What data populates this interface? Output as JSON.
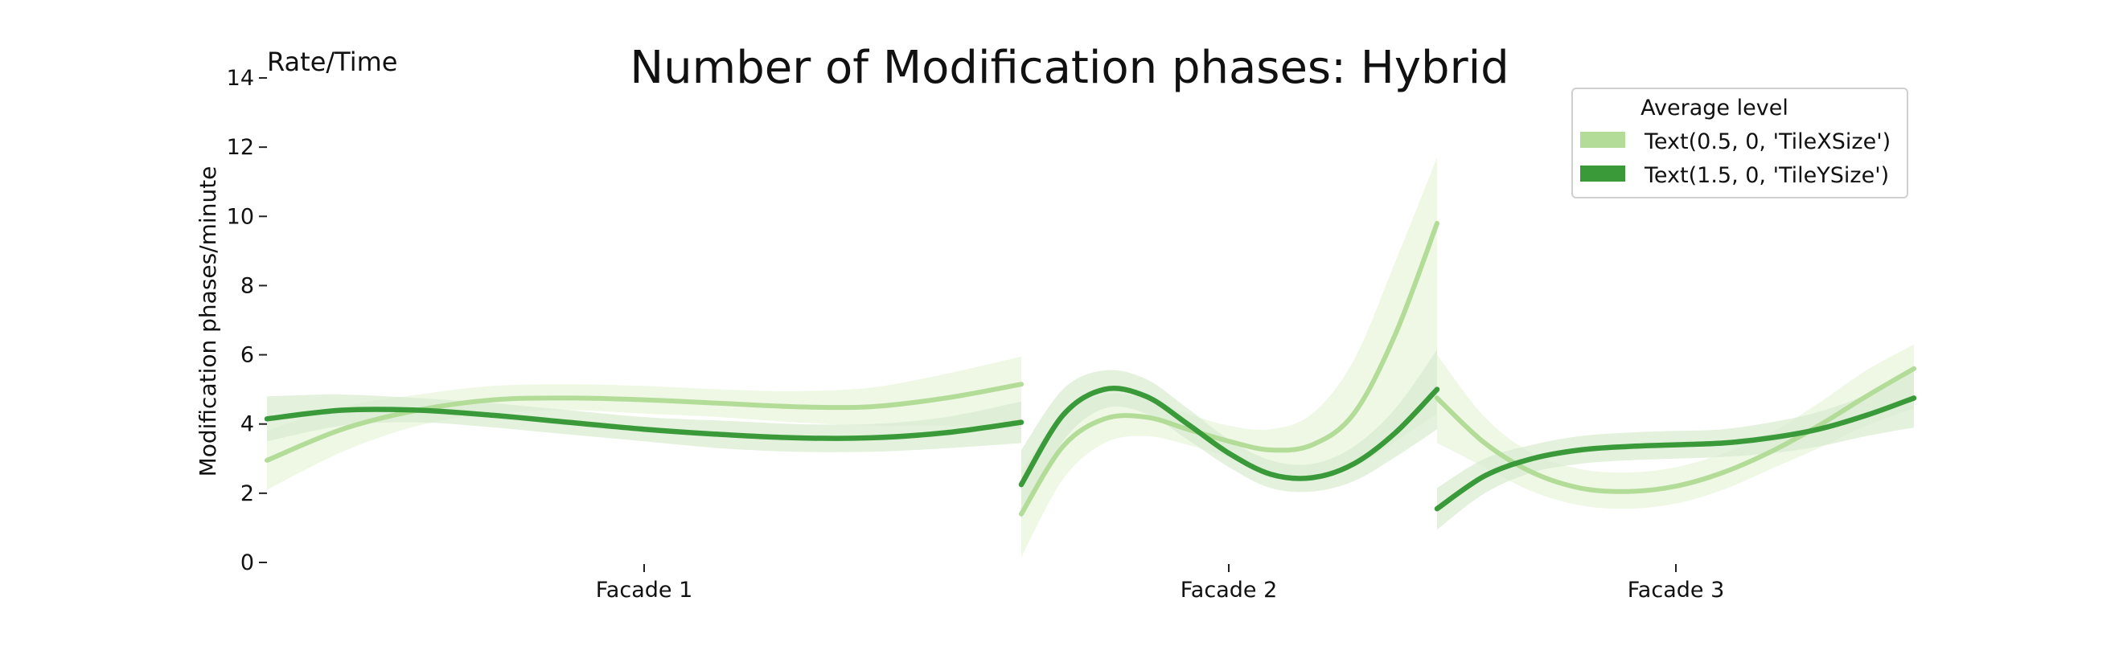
{
  "chart_data": {
    "type": "line",
    "title": "Number of Modification phases: Hybrid",
    "corner_label": "Rate/Time",
    "ylabel": "Modification phases/minute",
    "xlabel": "",
    "ylim": [
      0,
      14
    ],
    "yticks": [
      0,
      2,
      4,
      6,
      8,
      10,
      12,
      14
    ],
    "grid": false,
    "facets": [
      "Facade 1",
      "Facade 2",
      "Facade 3"
    ],
    "legend": {
      "title": "Average level",
      "placement": "top-right",
      "entries": [
        "Text(0.5, 0, 'TileXSize')",
        "Text(1.5, 0, 'TileYSize')"
      ]
    },
    "series": [
      {
        "name": "Text(0.5, 0, 'TileXSize')",
        "color": "#b2dc98",
        "band_color": "#e8f5dc",
        "segments": [
          {
            "facet": "Facade 1",
            "x": [
              0,
              0.1,
              0.2,
              0.3,
              0.4,
              0.5,
              0.6,
              0.7,
              0.8,
              0.9,
              1
            ],
            "y": [
              2.95,
              3.85,
              4.4,
              4.7,
              4.75,
              4.7,
              4.6,
              4.5,
              4.5,
              4.75,
              5.15
            ],
            "lower": [
              2.1,
              3.2,
              3.95,
              4.3,
              4.4,
              4.3,
              4.2,
              4.05,
              3.95,
              3.95,
              3.85
            ],
            "upper": [
              3.8,
              4.5,
              4.85,
              5.1,
              5.15,
              5.1,
              5.0,
              4.95,
              5.05,
              5.45,
              5.95
            ]
          },
          {
            "facet": "Facade 2",
            "x": [
              0,
              0.1,
              0.2,
              0.3,
              0.4,
              0.5,
              0.6,
              0.7,
              0.8,
              0.9,
              1
            ],
            "y": [
              1.4,
              3.35,
              4.15,
              4.2,
              3.85,
              3.5,
              3.25,
              3.4,
              4.3,
              6.6,
              9.8
            ],
            "lower": [
              0.15,
              2.4,
              3.45,
              3.65,
              3.4,
              3.05,
              2.65,
              2.5,
              2.75,
              3.5,
              4.3
            ],
            "upper": [
              2.65,
              4.3,
              4.85,
              4.75,
              4.3,
              3.95,
              3.85,
              4.3,
              5.85,
              8.7,
              11.7
            ]
          },
          {
            "facet": "Facade 3",
            "x": [
              0,
              0.1,
              0.2,
              0.3,
              0.4,
              0.5,
              0.6,
              0.7,
              0.8,
              0.9,
              1
            ],
            "y": [
              4.75,
              3.45,
              2.6,
              2.15,
              2.05,
              2.2,
              2.6,
              3.2,
              3.95,
              4.8,
              5.6
            ],
            "lower": [
              3.45,
              2.75,
              2.05,
              1.65,
              1.55,
              1.7,
              2.1,
              2.7,
              3.3,
              3.95,
              4.45
            ],
            "upper": [
              6.0,
              4.2,
              3.15,
              2.7,
              2.6,
              2.75,
              3.15,
              3.75,
              4.6,
              5.55,
              6.3
            ]
          }
        ]
      },
      {
        "name": "Text(1.5, 0, 'TileYSize')",
        "color": "#3a9a3a",
        "band_color": "#d9ecd2",
        "segments": [
          {
            "facet": "Facade 1",
            "x": [
              0,
              0.1,
              0.2,
              0.3,
              0.4,
              0.5,
              0.6,
              0.7,
              0.8,
              0.9,
              1
            ],
            "y": [
              4.15,
              4.4,
              4.4,
              4.25,
              4.05,
              3.85,
              3.7,
              3.6,
              3.6,
              3.75,
              4.05
            ],
            "lower": [
              3.5,
              3.95,
              4.05,
              3.9,
              3.7,
              3.5,
              3.3,
              3.2,
              3.2,
              3.3,
              3.45
            ],
            "upper": [
              4.8,
              4.85,
              4.75,
              4.6,
              4.4,
              4.2,
              4.1,
              4.0,
              4.0,
              4.2,
              4.65
            ]
          },
          {
            "facet": "Facade 2",
            "x": [
              0,
              0.1,
              0.2,
              0.3,
              0.4,
              0.5,
              0.6,
              0.7,
              0.8,
              0.9,
              1
            ],
            "y": [
              2.25,
              4.25,
              5.0,
              4.8,
              4.0,
              3.15,
              2.55,
              2.45,
              2.85,
              3.75,
              5.0
            ],
            "lower": [
              1.25,
              3.5,
              4.45,
              4.3,
              3.55,
              2.75,
              2.15,
              2.05,
              2.35,
              3.05,
              3.85
            ],
            "upper": [
              3.25,
              5.0,
              5.55,
              5.3,
              4.45,
              3.55,
              2.95,
              2.85,
              3.35,
              4.45,
              6.15
            ]
          },
          {
            "facet": "Facade 3",
            "x": [
              0,
              0.1,
              0.2,
              0.3,
              0.4,
              0.5,
              0.6,
              0.7,
              0.8,
              0.9,
              1
            ],
            "y": [
              1.55,
              2.5,
              3.0,
              3.25,
              3.35,
              3.4,
              3.45,
              3.6,
              3.85,
              4.25,
              4.75
            ],
            "lower": [
              0.95,
              2.0,
              2.6,
              2.85,
              2.95,
              3.0,
              3.05,
              3.15,
              3.35,
              3.65,
              3.9
            ],
            "upper": [
              2.15,
              3.0,
              3.4,
              3.65,
              3.75,
              3.8,
              3.85,
              4.05,
              4.35,
              4.85,
              5.6
            ]
          }
        ]
      }
    ]
  }
}
